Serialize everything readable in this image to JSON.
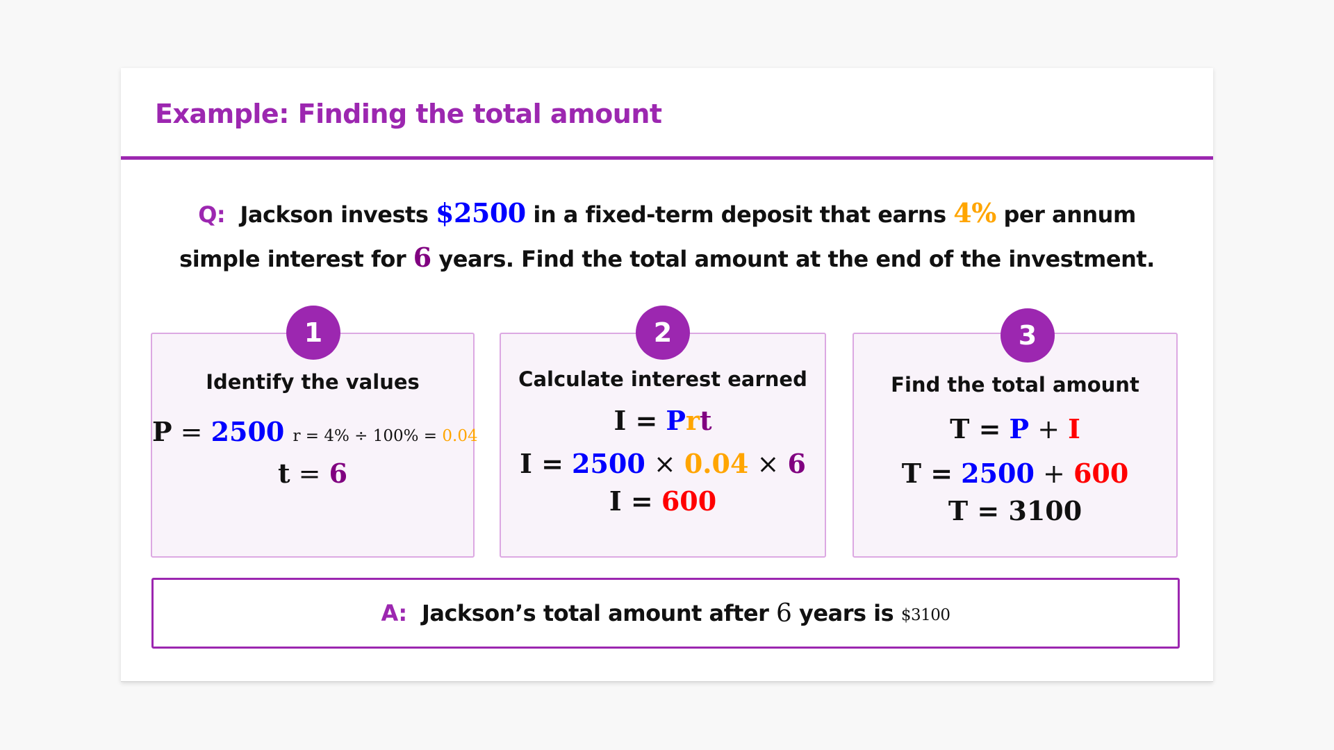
{
  "title": "Example: Finding the total amount",
  "question": {
    "label": "Q:",
    "line1_a": "Jackson invests",
    "principal": "$2500",
    "line1_b": "in a fixed-term deposit that earns",
    "rate": "4%",
    "line1_c": "per annum",
    "line2_a": "simple interest for",
    "time": "6",
    "line2_b": "years. Find the total amount at the end of the investment."
  },
  "steps": [
    {
      "number": "1",
      "heading": "Identify the values",
      "eq1": {
        "lhs": "P",
        "op": "=",
        "val": "2500"
      },
      "eq_r": {
        "text": "r = 4% ÷ 100% =",
        "val": "0.04"
      },
      "eq2": {
        "lhs": "t",
        "op": "=",
        "val": "6"
      }
    },
    {
      "number": "2",
      "heading": "Calculate interest earned",
      "eq1": {
        "lhs": "I =",
        "P": "P",
        "r": "r",
        "t": "t"
      },
      "eq2": {
        "lhs": "I =",
        "P": "2500",
        "x1": "×",
        "r": "0.04",
        "x2": "×",
        "t": "6"
      },
      "eq3": {
        "lhs": "I =",
        "val": "600"
      }
    },
    {
      "number": "3",
      "heading": "Find the total amount",
      "eq1": {
        "lhs": "T =",
        "P": "P",
        "plus": "+",
        "I": "I"
      },
      "eq2": {
        "lhs": "T =",
        "P": "2500",
        "plus": "+",
        "I": "600"
      },
      "eq3": {
        "text": "T = 3100"
      }
    }
  ],
  "answer": {
    "label": "A:",
    "text_a": "Jackson’s total amount after",
    "time": "6",
    "text_b": "years is",
    "value": "$3100"
  },
  "colors": {
    "accent": "#9c27b0",
    "principal": "#0000ff",
    "rate": "#ffa500",
    "time": "#800080",
    "interest": "#ff0000"
  }
}
